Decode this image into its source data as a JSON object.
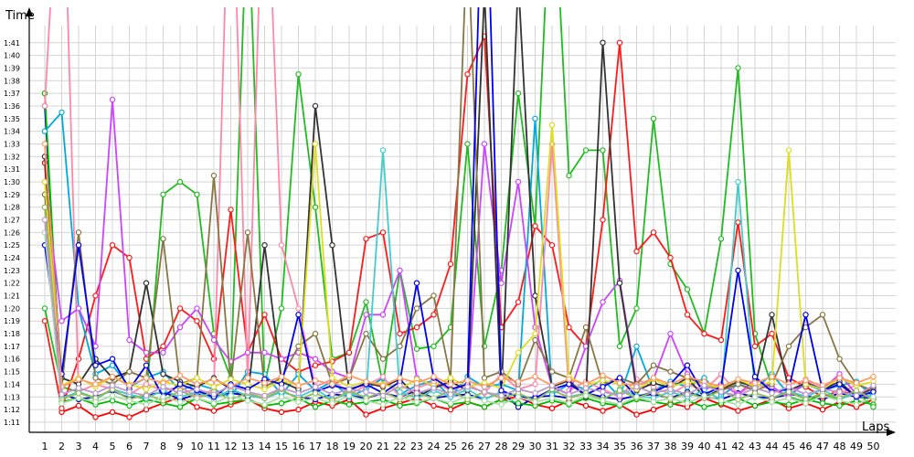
{
  "chart_data": {
    "type": "line",
    "title": "",
    "xlabel": "Laps",
    "ylabel": "Time",
    "grid": true,
    "legend": "none",
    "x": [
      1,
      2,
      3,
      4,
      5,
      6,
      7,
      8,
      9,
      10,
      11,
      12,
      13,
      14,
      15,
      16,
      17,
      18,
      19,
      20,
      21,
      22,
      23,
      24,
      25,
      26,
      27,
      28,
      29,
      30,
      31,
      32,
      33,
      34,
      35,
      36,
      37,
      38,
      39,
      40,
      41,
      42,
      43,
      44,
      45,
      46,
      47,
      48,
      49,
      50
    ],
    "xticks": [
      "1",
      "2",
      "3",
      "4",
      "5",
      "6",
      "7",
      "8",
      "9",
      "10",
      "11",
      "12",
      "13",
      "14",
      "15",
      "16",
      "17",
      "18",
      "19",
      "20",
      "21",
      "22",
      "23",
      "24",
      "25",
      "26",
      "27",
      "28",
      "29",
      "30",
      "31",
      "32",
      "33",
      "34",
      "35",
      "36",
      "37",
      "38",
      "39",
      "40",
      "41",
      "42",
      "43",
      "44",
      "45",
      "46",
      "47",
      "48",
      "49",
      "50"
    ],
    "ytick_values": [
      71,
      72,
      73,
      74,
      75,
      76,
      77,
      78,
      79,
      80,
      81,
      82,
      83,
      84,
      85,
      86,
      87,
      88,
      89,
      90,
      91,
      92,
      93,
      94,
      95,
      96,
      97,
      98,
      99,
      100,
      101
    ],
    "yticks": [
      "1:11",
      "1:12",
      "1:13",
      "1:14",
      "1:15",
      "1:16",
      "1:17",
      "1:18",
      "1:19",
      "1:20",
      "1:21",
      "1:22",
      "1:23",
      "1:24",
      "1:25",
      "1:26",
      "1:27",
      "1:28",
      "1:29",
      "1:30",
      "1:31",
      "1:32",
      "1:33",
      "1:34",
      "1:35",
      "1:36",
      "1:37",
      "1:38",
      "1:39",
      "1:40",
      "1:41"
    ],
    "ylim": [
      70.2,
      103.8
    ],
    "series": [
      {
        "color": "#ff0000",
        "values": [
          91.5,
          71.8,
          72.3,
          71.4,
          71.8,
          71.4,
          72.0,
          72.5,
          73.0,
          72.2,
          71.9,
          72.4,
          72.8,
          72.1,
          71.8,
          72.0,
          72.6,
          72.3,
          72.8,
          71.6,
          72.1,
          72.5,
          72.9,
          72.3,
          72.0,
          72.6,
          72.2,
          72.8,
          73.0,
          72.4,
          72.1,
          72.7,
          72.3,
          71.9,
          72.4,
          71.6,
          72.0,
          72.5,
          72.2,
          72.9,
          72.4,
          71.9,
          72.3,
          72.8,
          72.1,
          72.5,
          72.0,
          72.6,
          72.2,
          72.8
        ]
      },
      {
        "color": "#0000cc",
        "values": [
          96.0,
          73.2,
          72.8,
          73.0,
          73.5,
          72.9,
          73.1,
          73.4,
          72.8,
          73.2,
          73.0,
          73.3,
          73.1,
          72.9,
          73.4,
          73.0,
          72.8,
          73.2,
          73.1,
          72.9,
          73.3,
          73.0,
          73.5,
          72.9,
          73.1,
          73.2,
          72.8,
          73.4,
          72.2,
          73.0,
          73.1,
          72.9,
          73.3,
          73.0,
          72.8,
          73.1,
          73.2,
          72.9,
          73.4,
          73.0,
          72.8,
          73.3,
          73.0,
          72.9,
          73.2,
          73.1,
          72.8,
          73.3,
          73.0,
          72.9
        ]
      },
      {
        "color": "#00bb00",
        "values": [
          97.0,
          72.6,
          72.9,
          72.4,
          72.7,
          72.3,
          72.8,
          72.5,
          72.2,
          72.9,
          72.4,
          72.6,
          72.8,
          72.3,
          72.5,
          72.9,
          72.2,
          72.7,
          72.4,
          72.6,
          72.8,
          72.3,
          72.5,
          72.9,
          72.4,
          72.6,
          72.2,
          72.8,
          72.5,
          72.3,
          72.7,
          72.4,
          72.9,
          72.5,
          72.3,
          72.8,
          72.6,
          72.4,
          72.7,
          72.2,
          72.5,
          72.9,
          72.3,
          72.6,
          72.4,
          72.8,
          72.5,
          72.3,
          72.7,
          72.4
        ]
      },
      {
        "color": "#22bb22",
        "values": [
          80.0,
          73.8,
          73.4,
          72.9,
          73.6,
          73.2,
          72.8,
          89.0,
          90.0,
          89.0,
          78.0,
          74.5,
          113.0,
          74.0,
          80.0,
          98.5,
          88.0,
          76.0,
          76.5,
          80.5,
          74.0,
          83.0,
          76.8,
          77.0,
          78.5,
          93.0,
          77.0,
          83.0,
          97.0,
          86.5,
          116.0,
          90.5,
          92.5,
          92.5,
          77.0,
          80.0,
          95.0,
          83.5,
          81.5,
          78.0,
          85.5,
          99.0,
          78.0,
          73.8,
          73.0,
          72.6,
          73.2,
          72.8,
          73.4,
          72.2
        ]
      },
      {
        "color": "#ff1a1a",
        "values": [
          79.0,
          72.1,
          76.0,
          81.0,
          85.0,
          84.0,
          76.0,
          77.0,
          80.0,
          79.0,
          76.0,
          87.8,
          76.5,
          79.5,
          76.0,
          75.0,
          75.5,
          75.8,
          76.5,
          85.5,
          86.0,
          78.0,
          78.5,
          79.5,
          83.5,
          98.5,
          101.5,
          78.5,
          80.5,
          86.5,
          85.0,
          78.5,
          77.0,
          87.0,
          101.0,
          84.5,
          86.0,
          84.0,
          79.5,
          78.0,
          77.5,
          86.8,
          77.0,
          78.0,
          74.5,
          73.8,
          73.0,
          73.5,
          73.1,
          73.6
        ]
      },
      {
        "color": "#00aadd",
        "values": [
          94.0,
          95.5,
          80.0,
          74.8,
          75.5,
          73.8,
          74.5,
          75.0,
          73.5,
          74.0,
          73.6,
          73.0,
          75.0,
          74.8,
          73.2,
          74.8,
          73.5,
          74.2,
          73.0,
          73.6,
          74.5,
          73.2,
          73.9,
          74.3,
          73.0,
          74.6,
          73.8,
          74.0,
          73.5,
          95.0,
          73.2,
          74.0,
          73.6,
          74.4,
          73.0,
          77.0,
          73.5,
          74.2,
          73.8,
          74.5,
          73.1,
          74.0,
          73.6,
          74.8,
          73.2,
          74.0,
          73.5,
          73.9,
          74.2,
          73.0
        ]
      },
      {
        "color": "#ff88aa",
        "values": [
          96.0,
          120.0,
          73.4,
          74.0,
          73.6,
          73.2,
          74.0,
          73.5,
          73.8,
          73.0,
          73.6,
          120.0,
          74.0,
          120.0,
          85.0,
          80.0,
          73.8,
          74.4,
          73.2,
          73.9,
          74.6,
          73.0,
          73.7,
          74.2,
          73.5,
          74.0,
          73.3,
          74.8,
          73.6,
          74.0,
          93.0,
          73.5,
          74.2,
          73.6,
          73.0,
          74.4,
          73.8,
          73.2,
          74.0,
          73.5,
          74.8,
          73.2,
          74.0,
          73.6,
          73.0,
          74.4,
          73.8,
          73.2,
          74.0,
          73.5
        ]
      },
      {
        "color": "#cc44ff",
        "values": [
          90.0,
          79.0,
          80.0,
          77.0,
          96.5,
          77.5,
          76.5,
          76.5,
          78.5,
          80.0,
          77.5,
          75.8,
          76.5,
          76.5,
          76.0,
          76.5,
          76.0,
          75.0,
          74.5,
          79.5,
          79.5,
          83.0,
          74.5,
          73.8,
          74.2,
          73.5,
          93.0,
          82.0,
          90.0,
          78.5,
          73.8,
          73.2,
          77.0,
          80.5,
          82.2,
          73.9,
          74.4,
          78.0,
          74.8,
          73.6,
          74.0,
          73.2,
          74.4,
          73.8,
          73.0,
          74.2,
          73.6,
          74.8,
          73.2,
          72.9
        ]
      },
      {
        "color": "#333333",
        "values": [
          92.0,
          74.5,
          74.0,
          76.0,
          74.5,
          75.0,
          82.0,
          74.8,
          74.2,
          73.8,
          74.5,
          73.6,
          73.0,
          85.0,
          74.2,
          73.6,
          96.0,
          85.0,
          73.5,
          74.1,
          73.8,
          74.4,
          73.0,
          73.7,
          74.2,
          73.5,
          105.0,
          73.0,
          106.0,
          81.0,
          73.8,
          74.3,
          73.0,
          101.0,
          82.0,
          73.5,
          74.1,
          73.7,
          74.5,
          73.0,
          73.6,
          74.2,
          73.8,
          79.5,
          73.5,
          74.1,
          73.6,
          74.2,
          73.0,
          73.8
        ]
      },
      {
        "color": "#887744",
        "values": [
          89.0,
          73.8,
          86.0,
          74.5,
          74.0,
          75.0,
          74.5,
          85.5,
          74.0,
          74.5,
          90.5,
          74.0,
          86.0,
          73.8,
          74.5,
          77.0,
          78.0,
          74.0,
          74.5,
          78.0,
          76.0,
          77.0,
          80.0,
          81.0,
          74.5,
          110.0,
          74.5,
          75.0,
          74.0,
          77.5,
          75.0,
          74.5,
          78.5,
          74.0,
          74.5,
          74.0,
          75.5,
          75.0,
          74.5,
          74.0,
          73.5,
          74.0,
          73.5,
          74.0,
          77.0,
          78.5,
          79.5,
          76.0,
          74.0,
          73.5
        ]
      },
      {
        "color": "#dddd22",
        "values": [
          90.0,
          73.9,
          74.5,
          73.8,
          74.6,
          74.0,
          73.6,
          74.2,
          73.9,
          74.5,
          73.8,
          74.4,
          74.0,
          73.6,
          74.3,
          73.9,
          93.0,
          74.5,
          73.8,
          74.2,
          74.0,
          73.6,
          74.4,
          73.9,
          74.5,
          73.8,
          74.1,
          73.7,
          76.5,
          78.0,
          94.5,
          74.6,
          73.9,
          74.3,
          74.0,
          73.6,
          74.4,
          73.8,
          74.2,
          74.0,
          73.7,
          74.4,
          73.8,
          74.2,
          92.5,
          74.0,
          73.6,
          74.5,
          73.9,
          74.2
        ]
      },
      {
        "color": "#44cccc",
        "values": [
          88.0,
          72.9,
          73.4,
          72.8,
          73.6,
          73.2,
          72.9,
          73.5,
          73.0,
          73.4,
          72.8,
          73.6,
          73.1,
          72.9,
          73.4,
          73.0,
          73.6,
          72.8,
          73.3,
          73.0,
          92.5,
          73.4,
          72.9,
          73.5,
          73.0,
          73.6,
          72.8,
          73.4,
          73.1,
          72.9,
          73.5,
          73.0,
          73.3,
          72.8,
          73.6,
          73.1,
          72.9,
          73.4,
          73.0,
          73.5,
          72.8,
          90.0,
          73.3,
          72.9,
          73.5,
          73.0,
          73.6,
          72.8,
          73.3,
          73.0
        ]
      },
      {
        "color": "#0000ee",
        "values": [
          85.0,
          74.8,
          85.0,
          75.5,
          76.0,
          73.6,
          75.5,
          73.0,
          74.0,
          73.5,
          73.0,
          74.0,
          73.6,
          74.4,
          74.0,
          79.5,
          73.4,
          73.9,
          73.6,
          74.0,
          73.3,
          74.2,
          82.0,
          74.5,
          73.6,
          74.0,
          120.0,
          73.5,
          73.0,
          72.9,
          73.6,
          74.0,
          73.2,
          73.8,
          74.5,
          73.0,
          73.4,
          74.0,
          75.5,
          73.2,
          73.8,
          83.0,
          74.6,
          73.4,
          73.6,
          79.5,
          73.5,
          74.0,
          73.0,
          73.4
        ]
      },
      {
        "color": "#99bb55",
        "values": [
          88.0,
          72.8,
          73.3,
          72.9,
          73.6,
          72.8,
          73.2,
          72.7,
          73.5,
          72.9,
          73.4,
          72.8,
          73.3,
          72.9,
          73.6,
          72.8,
          73.3,
          72.7,
          73.5,
          72.9,
          73.4,
          72.8,
          73.3,
          72.9,
          73.5,
          72.8,
          73.4,
          72.9,
          73.3,
          72.7,
          73.6,
          72.9,
          73.3,
          72.8,
          73.5,
          72.9,
          73.4,
          72.8,
          73.3,
          72.9,
          73.5,
          72.8,
          73.3,
          72.9,
          73.4,
          72.8,
          73.3,
          72.9,
          73.5,
          72.8
        ]
      },
      {
        "color": "#aaddaa",
        "values": [
          86.0,
          72.5,
          72.9,
          72.6,
          73.1,
          72.7,
          72.4,
          73.0,
          72.6,
          72.9,
          72.5,
          73.1,
          72.7,
          72.4,
          73.0,
          72.6,
          72.9,
          72.5,
          73.1,
          72.7,
          72.4,
          73.0,
          72.6,
          72.9,
          72.5,
          73.1,
          72.7,
          72.4,
          73.0,
          72.6,
          72.9,
          72.5,
          73.1,
          72.7,
          72.4,
          73.0,
          72.6,
          72.9,
          72.5,
          73.1,
          72.7,
          72.4,
          73.0,
          72.6,
          72.9,
          72.5,
          73.1,
          72.7,
          72.4,
          73.0
        ]
      },
      {
        "color": "#ff9966",
        "values": [
          93.0,
          73.8,
          74.4,
          74.0,
          74.6,
          73.9,
          74.5,
          74.1,
          74.7,
          74.0,
          74.4,
          73.8,
          74.5,
          74.1,
          74.6,
          73.9,
          74.3,
          74.0,
          74.7,
          74.2,
          73.9,
          74.5,
          74.1,
          74.6,
          74.0,
          74.3,
          73.8,
          74.5,
          74.2,
          74.6,
          73.9,
          74.4,
          74.0,
          74.7,
          74.1,
          73.9,
          74.5,
          74.0,
          74.6,
          74.2,
          73.8,
          74.4,
          74.1,
          74.6,
          74.0,
          74.3,
          73.9,
          74.5,
          74.1,
          74.6
        ]
      },
      {
        "color": "#bb99cc",
        "values": [
          87.0,
          73.2,
          73.7,
          73.3,
          73.9,
          73.4,
          73.1,
          73.8,
          73.3,
          73.6,
          73.2,
          73.9,
          73.4,
          73.1,
          73.7,
          73.3,
          73.8,
          73.2,
          73.6,
          73.4,
          73.1,
          73.9,
          73.3,
          73.7,
          73.2,
          73.8,
          73.4,
          73.1,
          73.6,
          73.3,
          73.9,
          73.2,
          73.7,
          73.4,
          73.1,
          73.8,
          73.3,
          73.6,
          73.2,
          73.9,
          73.4,
          73.1,
          73.7,
          73.3,
          73.8,
          73.2,
          73.6,
          73.4,
          73.1,
          73.9
        ]
      }
    ]
  }
}
